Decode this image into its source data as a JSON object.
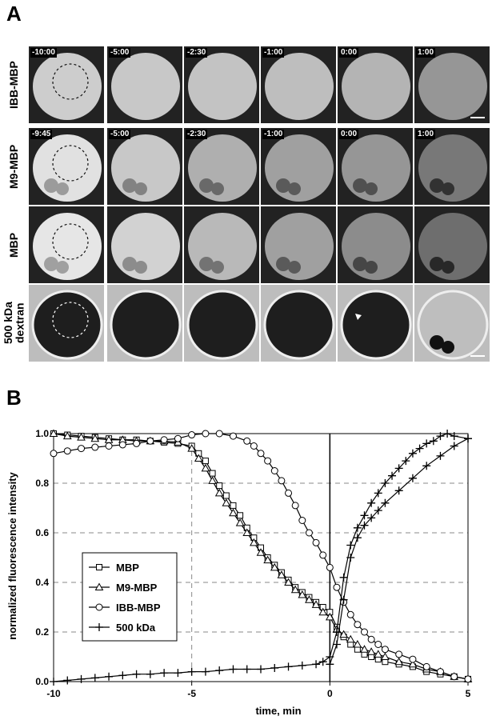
{
  "panel_a": {
    "label": "A",
    "rows": [
      {
        "label": "IBB-MBP",
        "times": [
          "-10:00",
          "-5:00",
          "-2:30",
          "-1:00",
          "0:00",
          "1:00"
        ],
        "scale_bar": true
      },
      {
        "label": "M9-MBP",
        "times": [
          "-9:45",
          "-5:00",
          "-2:30",
          "-1:00",
          "0:00",
          "1:00"
        ],
        "scale_bar": false
      },
      {
        "label": "MBP",
        "times": [],
        "scale_bar": false
      },
      {
        "label": "500 kDa\ndextran",
        "times": [],
        "scale_bar": true
      }
    ]
  },
  "panel_b": {
    "label": "B"
  },
  "chart_data": {
    "type": "line",
    "xlabel": "time, min",
    "ylabel": "normalized fluorescence intensity",
    "xlim": [
      -10,
      5
    ],
    "ylim": [
      0,
      1.0
    ],
    "xticks": [
      "-10",
      "-5",
      "0",
      "5"
    ],
    "yticks": [
      "0.0",
      "0.2",
      "0.4",
      "0.6",
      "0.8",
      "1.0"
    ],
    "grid": "horizontal dashed",
    "legend_position": "lower-left",
    "series": [
      {
        "name": "MBP",
        "marker": "square",
        "x": [
          -10,
          -9.5,
          -9,
          -8.5,
          -8,
          -7.5,
          -7,
          -6.5,
          -6,
          -5.5,
          -5,
          -4.75,
          -4.5,
          -4.25,
          -4,
          -3.75,
          -3.5,
          -3.25,
          -3,
          -2.75,
          -2.5,
          -2.25,
          -2,
          -1.75,
          -1.5,
          -1.25,
          -1,
          -0.75,
          -0.5,
          -0.25,
          0,
          0.25,
          0.5,
          0.75,
          1,
          1.25,
          1.5,
          1.75,
          2,
          2.5,
          3,
          3.5,
          4,
          4.5,
          5
        ],
        "y": [
          1.0,
          0.995,
          0.99,
          0.985,
          0.98,
          0.975,
          0.975,
          0.97,
          0.965,
          0.96,
          0.95,
          0.92,
          0.89,
          0.84,
          0.79,
          0.75,
          0.71,
          0.67,
          0.62,
          0.58,
          0.54,
          0.5,
          0.47,
          0.44,
          0.41,
          0.38,
          0.36,
          0.34,
          0.32,
          0.3,
          0.28,
          0.22,
          0.18,
          0.15,
          0.13,
          0.11,
          0.1,
          0.09,
          0.08,
          0.07,
          0.06,
          0.04,
          0.03,
          0.02,
          0.01
        ]
      },
      {
        "name": "M9-MBP",
        "marker": "triangle",
        "x": [
          -10,
          -9.5,
          -9,
          -8.5,
          -8,
          -7.5,
          -7,
          -6.5,
          -6,
          -5.5,
          -5,
          -4.75,
          -4.5,
          -4.25,
          -4,
          -3.75,
          -3.5,
          -3.25,
          -3,
          -2.75,
          -2.5,
          -2.25,
          -2,
          -1.75,
          -1.5,
          -1.25,
          -1,
          -0.75,
          -0.5,
          -0.25,
          0,
          0.25,
          0.5,
          0.75,
          1,
          1.25,
          1.5,
          1.75,
          2,
          2.5,
          3,
          3.5,
          4,
          4.5,
          5
        ],
        "y": [
          1.0,
          0.99,
          0.985,
          0.98,
          0.975,
          0.975,
          0.97,
          0.97,
          0.97,
          0.965,
          0.94,
          0.9,
          0.86,
          0.81,
          0.76,
          0.72,
          0.68,
          0.64,
          0.6,
          0.56,
          0.52,
          0.49,
          0.46,
          0.43,
          0.4,
          0.37,
          0.35,
          0.33,
          0.31,
          0.28,
          0.26,
          0.21,
          0.19,
          0.17,
          0.15,
          0.13,
          0.12,
          0.11,
          0.1,
          0.08,
          0.07,
          0.05,
          0.04,
          0.02,
          0.01
        ]
      },
      {
        "name": "IBB-MBP",
        "marker": "circle",
        "x": [
          -10,
          -9.5,
          -9,
          -8.5,
          -8,
          -7.5,
          -7,
          -6.5,
          -6,
          -5.5,
          -5,
          -4.5,
          -4,
          -3.5,
          -3,
          -2.75,
          -2.5,
          -2.25,
          -2,
          -1.75,
          -1.5,
          -1.25,
          -1,
          -0.75,
          -0.5,
          -0.25,
          0,
          0.25,
          0.5,
          0.75,
          1,
          1.25,
          1.5,
          1.75,
          2,
          2.5,
          3,
          3.5,
          4,
          4.5,
          5
        ],
        "y": [
          0.92,
          0.93,
          0.94,
          0.945,
          0.95,
          0.955,
          0.96,
          0.97,
          0.975,
          0.98,
          0.995,
          1.0,
          1.0,
          0.99,
          0.97,
          0.95,
          0.92,
          0.89,
          0.85,
          0.81,
          0.76,
          0.71,
          0.65,
          0.6,
          0.56,
          0.51,
          0.46,
          0.38,
          0.32,
          0.27,
          0.23,
          0.2,
          0.17,
          0.15,
          0.13,
          0.11,
          0.09,
          0.06,
          0.04,
          0.02,
          0.01
        ]
      },
      {
        "name": "500 kDa",
        "marker": "plus",
        "x": [
          -10,
          -9.5,
          -9,
          -8.5,
          -8,
          -7.5,
          -7,
          -6.5,
          -6,
          -5.5,
          -5,
          -4.5,
          -4,
          -3.5,
          -3,
          -2.5,
          -2,
          -1.5,
          -1,
          -0.5,
          -0.25,
          0,
          0.25,
          0.5,
          0.75,
          1,
          1.25,
          1.5,
          1.75,
          2,
          2.25,
          2.5,
          2.75,
          3,
          3.25,
          3.5,
          3.75,
          4,
          4.25,
          4.5,
          5
        ],
        "y": [
          0.0,
          0.005,
          0.01,
          0.015,
          0.02,
          0.025,
          0.03,
          0.03,
          0.035,
          0.035,
          0.04,
          0.04,
          0.045,
          0.05,
          0.05,
          0.05,
          0.055,
          0.06,
          0.065,
          0.07,
          0.08,
          0.1,
          0.2,
          0.42,
          0.55,
          0.62,
          0.67,
          0.72,
          0.76,
          0.8,
          0.83,
          0.86,
          0.89,
          0.92,
          0.94,
          0.96,
          0.97,
          0.99,
          1.0,
          0.99,
          0.98
        ]
      },
      {
        "name": "500 kDa",
        "marker": "plus",
        "x": [
          0,
          0.25,
          0.5,
          0.75,
          1,
          1.25,
          1.5,
          1.75,
          2,
          2.5,
          3,
          3.5,
          4,
          4.5,
          5
        ],
        "y": [
          0.07,
          0.15,
          0.33,
          0.5,
          0.58,
          0.63,
          0.66,
          0.69,
          0.72,
          0.77,
          0.82,
          0.87,
          0.91,
          0.95,
          0.98
        ],
        "legend": false
      }
    ]
  }
}
